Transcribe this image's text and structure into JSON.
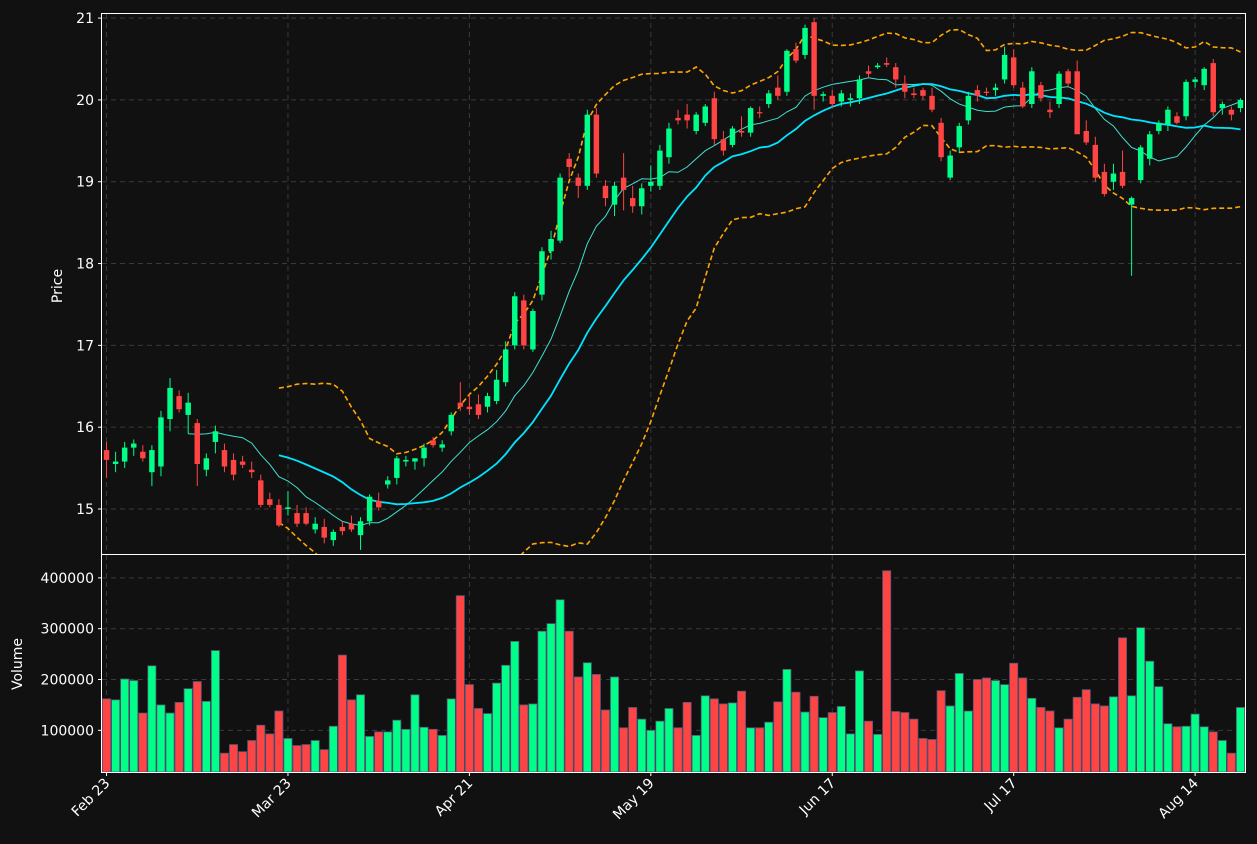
{
  "colors": {
    "background": "#111111",
    "up": "#00ff88",
    "down": "#ff4444",
    "ma_fast": "#40e0d0",
    "ma_slow": "#00e5ff",
    "bands": "#ffa500",
    "grid": "#3a3a3a",
    "text": "#ffffff"
  },
  "chart_data": {
    "type": "candlestick",
    "ylabel": "Price",
    "volume_label": "Volume",
    "grid": true,
    "price_ylim": [
      14.45,
      21.05
    ],
    "volume_ylim": [
      18000,
      445000
    ],
    "price_ticks": [
      15,
      16,
      17,
      18,
      19,
      20,
      21
    ],
    "volume_ticks": [
      100000,
      200000,
      300000,
      400000
    ],
    "x_tick_labels": [
      "Feb 23",
      "Mar 23",
      "Apr 21",
      "May 19",
      "Jun 17",
      "Jul 17",
      "Aug 14"
    ],
    "x_tick_index": [
      0,
      20,
      40,
      60,
      80,
      100,
      120
    ],
    "bars": [
      [
        15.72,
        15.82,
        15.38,
        15.6,
        162000
      ],
      [
        15.55,
        15.7,
        15.45,
        15.58,
        160000
      ],
      [
        15.58,
        15.82,
        15.5,
        15.75,
        201000
      ],
      [
        15.75,
        15.85,
        15.65,
        15.8,
        198000
      ],
      [
        15.7,
        15.78,
        15.58,
        15.62,
        134000
      ],
      [
        15.45,
        15.78,
        15.28,
        15.72,
        227000
      ],
      [
        15.52,
        16.2,
        15.4,
        16.12,
        150000
      ],
      [
        16.1,
        16.6,
        15.95,
        16.48,
        134000
      ],
      [
        16.38,
        16.45,
        16.18,
        16.22,
        155000
      ],
      [
        16.15,
        16.42,
        15.92,
        16.3,
        182000
      ],
      [
        16.05,
        16.1,
        15.28,
        15.55,
        196000
      ],
      [
        15.48,
        15.68,
        15.4,
        15.62,
        157000
      ],
      [
        15.82,
        16.02,
        15.68,
        15.95,
        257000
      ],
      [
        15.72,
        15.8,
        15.45,
        15.52,
        55000
      ],
      [
        15.6,
        15.68,
        15.35,
        15.42,
        72000
      ],
      [
        15.58,
        15.65,
        15.5,
        15.54,
        58000
      ],
      [
        15.48,
        15.58,
        15.38,
        15.45,
        80000
      ],
      [
        15.35,
        15.42,
        15.02,
        15.05,
        110000
      ],
      [
        15.12,
        15.2,
        15.02,
        15.05,
        93000
      ],
      [
        15.05,
        15.12,
        14.78,
        14.8,
        138000
      ],
      [
        15.0,
        15.22,
        14.92,
        15.02,
        84000
      ],
      [
        14.95,
        15.05,
        14.78,
        14.82,
        70000
      ],
      [
        14.95,
        15.02,
        14.8,
        14.82,
        72000
      ],
      [
        14.75,
        14.9,
        14.7,
        14.82,
        80000
      ],
      [
        14.78,
        14.88,
        14.58,
        14.65,
        62000
      ],
      [
        14.62,
        14.75,
        14.55,
        14.72,
        108000
      ],
      [
        14.78,
        14.85,
        14.68,
        14.73,
        248000
      ],
      [
        14.82,
        14.92,
        14.72,
        14.75,
        160000
      ],
      [
        14.68,
        14.9,
        14.5,
        14.85,
        170000
      ],
      [
        14.85,
        15.18,
        14.8,
        15.15,
        88000
      ],
      [
        15.1,
        15.2,
        14.98,
        15.02,
        97000
      ],
      [
        15.3,
        15.4,
        15.25,
        15.35,
        97000
      ],
      [
        15.38,
        15.65,
        15.3,
        15.62,
        120000
      ],
      [
        15.58,
        15.65,
        15.52,
        15.6,
        102000
      ],
      [
        15.58,
        15.62,
        15.48,
        15.62,
        170000
      ],
      [
        15.62,
        15.8,
        15.52,
        15.75,
        106000
      ],
      [
        15.84,
        15.88,
        15.75,
        15.78,
        102000
      ],
      [
        15.75,
        15.84,
        15.7,
        15.79,
        90000
      ],
      [
        15.95,
        16.18,
        15.9,
        16.15,
        162000
      ],
      [
        16.3,
        16.55,
        16.2,
        16.25,
        365000
      ],
      [
        16.25,
        16.4,
        16.15,
        16.22,
        190000
      ],
      [
        16.28,
        16.4,
        16.1,
        16.15,
        143000
      ],
      [
        16.25,
        16.42,
        16.18,
        16.38,
        133000
      ],
      [
        16.32,
        16.7,
        16.28,
        16.58,
        193000
      ],
      [
        16.55,
        17.05,
        16.5,
        16.95,
        228000
      ],
      [
        17.0,
        17.65,
        16.95,
        17.6,
        275000
      ],
      [
        17.55,
        17.62,
        16.95,
        17.0,
        150000
      ],
      [
        16.95,
        17.45,
        16.92,
        17.42,
        152000
      ],
      [
        17.62,
        18.2,
        17.55,
        18.15,
        295000
      ],
      [
        18.15,
        18.4,
        18.05,
        18.3,
        310000
      ],
      [
        18.28,
        19.1,
        18.25,
        19.05,
        357000
      ],
      [
        19.28,
        19.35,
        19.05,
        19.18,
        295000
      ],
      [
        19.05,
        19.1,
        18.8,
        18.95,
        205000
      ],
      [
        18.95,
        19.88,
        18.9,
        19.82,
        233000
      ],
      [
        19.82,
        19.9,
        19.05,
        19.1,
        210000
      ],
      [
        18.95,
        19.02,
        18.7,
        18.8,
        140000
      ],
      [
        18.72,
        19.0,
        18.58,
        18.95,
        205000
      ],
      [
        19.05,
        19.35,
        18.65,
        18.9,
        105000
      ],
      [
        18.8,
        18.95,
        18.62,
        18.7,
        145000
      ],
      [
        18.7,
        18.98,
        18.6,
        18.92,
        122000
      ],
      [
        18.95,
        19.2,
        18.88,
        19.0,
        100000
      ],
      [
        18.95,
        19.45,
        18.9,
        19.38,
        118000
      ],
      [
        19.3,
        19.72,
        19.22,
        19.65,
        143000
      ],
      [
        19.78,
        19.88,
        19.7,
        19.75,
        105000
      ],
      [
        19.82,
        19.95,
        19.65,
        19.75,
        155000
      ],
      [
        19.62,
        19.85,
        19.58,
        19.82,
        90000
      ],
      [
        19.72,
        19.95,
        19.68,
        19.92,
        168000
      ],
      [
        20.02,
        20.1,
        19.45,
        19.52,
        162000
      ],
      [
        19.52,
        19.62,
        19.32,
        19.38,
        152000
      ],
      [
        19.45,
        19.68,
        19.42,
        19.65,
        154000
      ],
      [
        19.62,
        19.8,
        19.55,
        19.6,
        177000
      ],
      [
        19.6,
        19.92,
        19.55,
        19.9,
        105000
      ],
      [
        19.85,
        19.92,
        19.78,
        19.84,
        105000
      ],
      [
        19.95,
        20.12,
        19.9,
        20.08,
        116000
      ],
      [
        20.15,
        20.3,
        20.0,
        20.05,
        156000
      ],
      [
        20.1,
        20.62,
        20.05,
        20.6,
        220000
      ],
      [
        20.62,
        20.7,
        20.45,
        20.48,
        175000
      ],
      [
        20.55,
        20.92,
        20.5,
        20.88,
        136000
      ],
      [
        20.95,
        21.0,
        19.88,
        20.05,
        167000
      ],
      [
        20.05,
        20.1,
        19.98,
        20.07,
        125000
      ],
      [
        20.05,
        20.12,
        19.9,
        19.95,
        135000
      ],
      [
        19.98,
        20.12,
        19.92,
        20.08,
        147000
      ],
      [
        20.0,
        20.08,
        19.92,
        20.02,
        93000
      ],
      [
        20.02,
        20.3,
        19.95,
        20.25,
        217000
      ],
      [
        20.35,
        20.42,
        20.28,
        20.32,
        118000
      ],
      [
        20.4,
        20.45,
        20.38,
        20.42,
        92000
      ],
      [
        20.45,
        20.52,
        20.4,
        20.43,
        414000
      ],
      [
        20.4,
        20.45,
        20.15,
        20.25,
        137000
      ],
      [
        20.2,
        20.3,
        20.02,
        20.1,
        135000
      ],
      [
        20.08,
        20.15,
        20.02,
        20.06,
        122000
      ],
      [
        20.12,
        20.15,
        20.0,
        20.05,
        84000
      ],
      [
        20.05,
        20.15,
        19.85,
        19.88,
        82000
      ],
      [
        19.72,
        19.78,
        19.25,
        19.3,
        178000
      ],
      [
        19.05,
        19.38,
        19.02,
        19.32,
        148000
      ],
      [
        19.42,
        19.72,
        19.35,
        19.68,
        212000
      ],
      [
        19.75,
        20.1,
        19.7,
        20.05,
        138000
      ],
      [
        20.12,
        20.18,
        19.98,
        20.05,
        200000
      ],
      [
        20.1,
        20.15,
        20.05,
        20.09,
        203000
      ],
      [
        20.12,
        20.2,
        20.05,
        20.15,
        198000
      ],
      [
        20.25,
        20.65,
        20.2,
        20.55,
        190000
      ],
      [
        20.52,
        20.62,
        20.15,
        20.18,
        232000
      ],
      [
        20.15,
        20.22,
        19.9,
        19.92,
        203000
      ],
      [
        19.95,
        20.4,
        19.9,
        20.35,
        163000
      ],
      [
        20.18,
        20.22,
        19.98,
        20.02,
        145000
      ],
      [
        19.88,
        19.98,
        19.78,
        19.85,
        138000
      ],
      [
        19.95,
        20.35,
        19.9,
        20.32,
        105000
      ],
      [
        20.35,
        20.38,
        20.15,
        20.2,
        122000
      ],
      [
        20.35,
        20.48,
        19.62,
        19.58,
        165000
      ],
      [
        19.62,
        19.75,
        19.45,
        19.48,
        180000
      ],
      [
        19.45,
        19.55,
        19.0,
        19.05,
        152000
      ],
      [
        19.12,
        19.22,
        18.82,
        18.85,
        148000
      ],
      [
        19.0,
        19.22,
        18.9,
        19.1,
        166000
      ],
      [
        19.12,
        19.38,
        18.92,
        18.95,
        282000
      ],
      [
        18.72,
        18.82,
        17.85,
        18.8,
        168000
      ],
      [
        19.02,
        19.45,
        18.98,
        19.42,
        302000
      ],
      [
        19.28,
        19.62,
        19.2,
        19.58,
        236000
      ],
      [
        19.62,
        19.75,
        19.58,
        19.72,
        186000
      ],
      [
        19.7,
        19.92,
        19.62,
        19.88,
        113000
      ],
      [
        19.8,
        19.85,
        19.7,
        19.72,
        107000
      ],
      [
        19.8,
        20.25,
        19.75,
        20.22,
        108000
      ],
      [
        20.22,
        20.28,
        20.15,
        20.25,
        132000
      ],
      [
        20.18,
        20.4,
        20.12,
        20.38,
        107000
      ],
      [
        20.45,
        20.5,
        19.8,
        19.85,
        97000
      ],
      [
        19.9,
        19.98,
        19.82,
        19.95,
        80000
      ],
      [
        19.88,
        19.92,
        19.75,
        19.82,
        55000
      ],
      [
        19.9,
        20.02,
        19.85,
        20.0,
        145000
      ]
    ]
  }
}
